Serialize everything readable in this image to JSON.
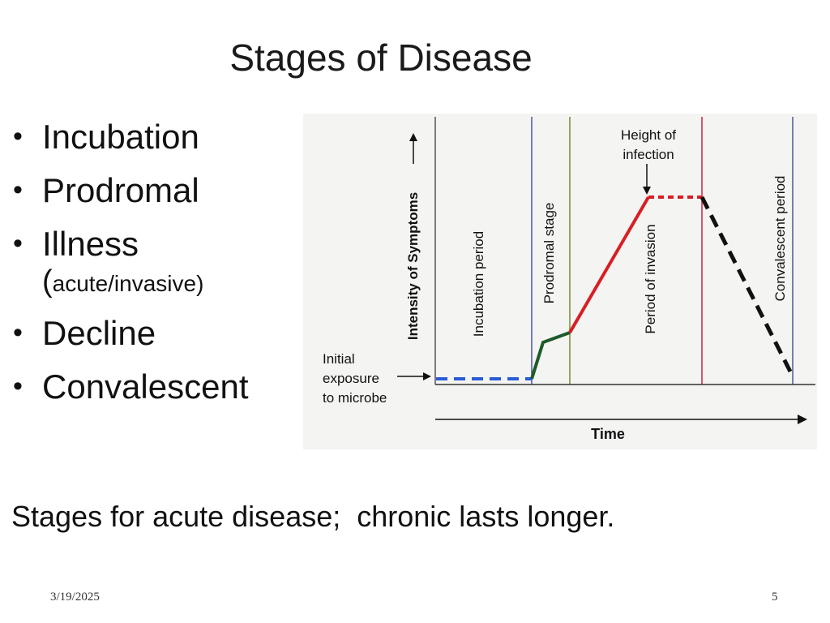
{
  "slide": {
    "title": "Stages of Disease",
    "caption": "Stages for acute disease;  chronic lasts longer.",
    "footer": {
      "date": "3/19/2025",
      "page": "5"
    }
  },
  "bullets": [
    {
      "text": "Incubation"
    },
    {
      "text": "Prodromal"
    },
    {
      "text": "Illness",
      "paren_open": "(",
      "sub": "acute/invasive)"
    },
    {
      "text": "Decline"
    },
    {
      "text": "Convalescent"
    }
  ],
  "figure": {
    "y_axis_label": "Intensity of Symptoms",
    "x_axis_label": "Time",
    "initial_exposure": [
      "Initial",
      "exposure",
      "to microbe"
    ],
    "height_of_infection": [
      "Height of",
      "infection"
    ],
    "periods": {
      "incubation": "Incubation period",
      "prodromal": "Prodromal stage",
      "invasion": "Period of invasion",
      "convalescent": "Convalescent period"
    },
    "colors": {
      "incubation": "#2a5bd7",
      "prodromal": "#1e5a2a",
      "invasion": "#d81e24",
      "decline": "#111111",
      "divider_blue": "#4a5a9a",
      "divider_olive": "#7a8a2a",
      "divider_red": "#d81e3a"
    }
  }
}
